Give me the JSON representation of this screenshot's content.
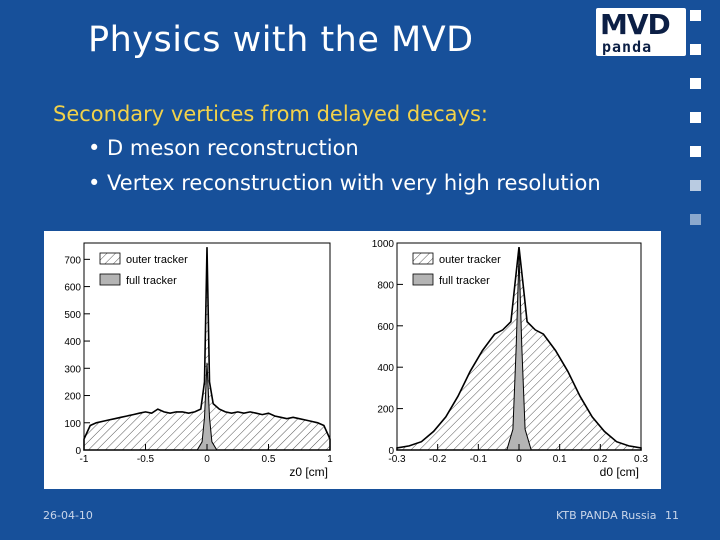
{
  "title": "Physics with the MVD",
  "logo": {
    "top": "MVD",
    "bottom": "panda"
  },
  "subheading": "Secondary vertices from delayed decays:",
  "bullets": [
    "• D meson reconstruction",
    "• Vertex reconstruction with very high resolution"
  ],
  "footer": {
    "date": "26-04-10",
    "source": "KTB  PANDA Russia",
    "page": "11"
  },
  "colors": {
    "background": "#17509a",
    "subheading": "#f2d24a",
    "full_tracker_fill": "#b4b4b4"
  },
  "chart_data": [
    {
      "type": "histogram",
      "xlabel": "z0 [cm]",
      "xlim": [
        -1,
        1
      ],
      "ylim": [
        0,
        760
      ],
      "xticks": [
        -1,
        -0.5,
        0,
        0.5,
        1
      ],
      "xtick_labels": [
        "-1",
        "-0.5",
        "0",
        "0.5",
        "1"
      ],
      "yticks": [
        0,
        100,
        200,
        300,
        400,
        500,
        600,
        700
      ],
      "ytick_labels": [
        "0",
        "100",
        "200",
        "300",
        "400",
        "500",
        "600",
        "700"
      ],
      "legend": [
        "outer tracker",
        "full tracker"
      ],
      "legend_position": "top-left",
      "series": [
        {
          "name": "outer tracker",
          "style": "hatched",
          "x": [
            -1.0,
            -0.95,
            -0.9,
            -0.85,
            -0.8,
            -0.75,
            -0.7,
            -0.65,
            -0.6,
            -0.55,
            -0.5,
            -0.45,
            -0.4,
            -0.35,
            -0.3,
            -0.25,
            -0.2,
            -0.15,
            -0.1,
            -0.05,
            -0.02,
            0,
            0.02,
            0.05,
            0.1,
            0.15,
            0.2,
            0.25,
            0.3,
            0.35,
            0.4,
            0.45,
            0.5,
            0.55,
            0.6,
            0.65,
            0.7,
            0.75,
            0.8,
            0.85,
            0.9,
            0.95,
            1.0
          ],
          "y": [
            40,
            90,
            100,
            105,
            110,
            115,
            120,
            125,
            130,
            135,
            140,
            135,
            150,
            140,
            135,
            140,
            140,
            135,
            140,
            150,
            250,
            745,
            250,
            170,
            150,
            140,
            135,
            140,
            135,
            140,
            135,
            130,
            135,
            125,
            120,
            115,
            120,
            115,
            110,
            105,
            100,
            90,
            40
          ]
        },
        {
          "name": "full tracker",
          "style": "gray",
          "x": [
            -0.08,
            -0.04,
            -0.02,
            0,
            0.02,
            0.04,
            0.08
          ],
          "y": [
            0,
            30,
            120,
            320,
            120,
            30,
            0
          ]
        }
      ]
    },
    {
      "type": "histogram",
      "xlabel": "d0 [cm]",
      "xlim": [
        -0.3,
        0.3
      ],
      "ylim": [
        0,
        1000
      ],
      "xticks": [
        -0.3,
        -0.2,
        -0.1,
        0,
        0.1,
        0.2,
        0.3
      ],
      "xtick_labels": [
        "-0.3",
        "-0.2",
        "-0.1",
        "0",
        "0.1",
        "0.2",
        "0.3"
      ],
      "yticks": [
        0,
        200,
        400,
        600,
        800,
        1000
      ],
      "ytick_labels": [
        "0",
        "200",
        "400",
        "600",
        "800",
        "1000"
      ],
      "legend": [
        "outer tracker",
        "full tracker"
      ],
      "legend_position": "top-left",
      "series": [
        {
          "name": "outer tracker",
          "style": "hatched",
          "x": [
            -0.3,
            -0.27,
            -0.24,
            -0.21,
            -0.18,
            -0.15,
            -0.12,
            -0.09,
            -0.06,
            -0.04,
            -0.02,
            -0.01,
            0,
            0.01,
            0.02,
            0.04,
            0.06,
            0.09,
            0.12,
            0.15,
            0.18,
            0.21,
            0.24,
            0.27,
            0.3
          ],
          "y": [
            10,
            20,
            40,
            90,
            160,
            260,
            380,
            480,
            560,
            580,
            620,
            800,
            980,
            800,
            620,
            580,
            560,
            480,
            380,
            260,
            160,
            90,
            40,
            20,
            10
          ]
        },
        {
          "name": "full tracker",
          "style": "gray",
          "x": [
            -0.03,
            -0.015,
            -0.007,
            0,
            0.007,
            0.015,
            0.03
          ],
          "y": [
            0,
            100,
            500,
            940,
            500,
            100,
            0
          ]
        }
      ]
    }
  ]
}
